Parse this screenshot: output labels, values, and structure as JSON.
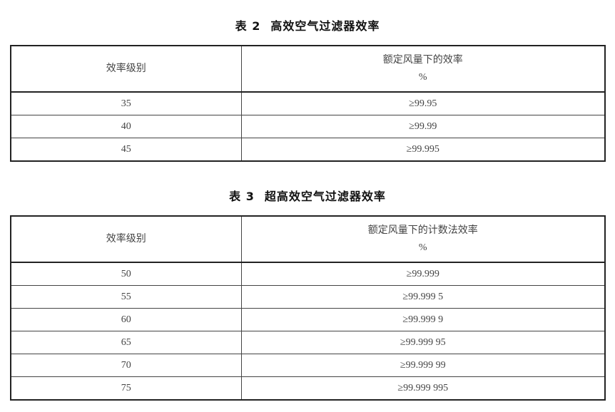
{
  "table2": {
    "caption_number": "表 2",
    "caption_title": "高效空气过滤器效率",
    "header": {
      "col1": "效率级别",
      "col2": "额定风量下的效率",
      "col2_unit": "%"
    },
    "rows": [
      {
        "grade": "35",
        "efficiency": "≥99.95"
      },
      {
        "grade": "40",
        "efficiency": "≥99.99"
      },
      {
        "grade": "45",
        "efficiency": "≥99.995"
      }
    ]
  },
  "table3": {
    "caption_number": "表 3",
    "caption_title": "超高效空气过滤器效率",
    "header": {
      "col1": "效率级别",
      "col2": "额定风量下的计数法效率",
      "col2_unit": "%"
    },
    "rows": [
      {
        "grade": "50",
        "efficiency": "≥99.999"
      },
      {
        "grade": "55",
        "efficiency": "≥99.999 5"
      },
      {
        "grade": "60",
        "efficiency": "≥99.999 9"
      },
      {
        "grade": "65",
        "efficiency": "≥99.999 95"
      },
      {
        "grade": "70",
        "efficiency": "≥99.999 99"
      },
      {
        "grade": "75",
        "efficiency": "≥99.999 995"
      }
    ]
  }
}
